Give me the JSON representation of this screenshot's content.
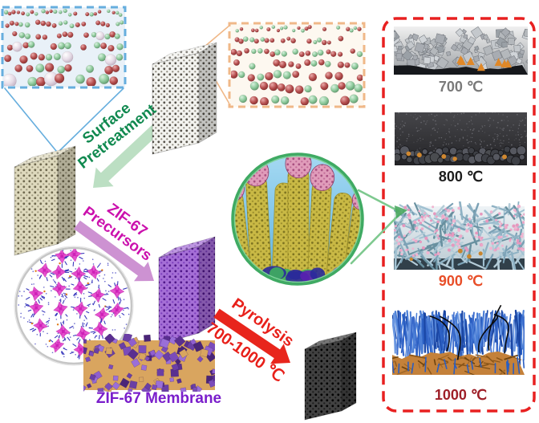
{
  "process_steps": {
    "surface_pretreatment": {
      "line1": "Surface",
      "line2": "Pretreatment",
      "text_color": "#10894f",
      "arrow_color": "#bcdfc3"
    },
    "zif67_precursors": {
      "line1": "ZIF-67",
      "line2": "Precursors",
      "text_color": "#cb11ad",
      "arrow_color": "#cd92d2"
    },
    "pyrolysis": {
      "line1": "Pyrolysis",
      "line2": "700-1000 ℃",
      "text_color": "#e8201a",
      "arrow_color": "#e8251c"
    }
  },
  "membrane": {
    "label": "ZIF-67 Membrane",
    "text_color": "#7a1ecb"
  },
  "temperature_panels": {
    "border_color": "#e82020",
    "items": [
      {
        "label": "700 ℃",
        "color": "#7a7a7a"
      },
      {
        "label": "800 ℃",
        "color": "#1c1c1c"
      },
      {
        "label": "900 ℃",
        "color": "#e84e28"
      },
      {
        "label": "1000 ℃",
        "color": "#9e1f28"
      }
    ]
  },
  "insets": {
    "pristine_surface_border": "#f0b888",
    "pretreated_surface_border": "#66aede",
    "zif67_unit_cell_border": "#c6c6c6",
    "nanostructure_magnifier_border": "#3faa63"
  }
}
